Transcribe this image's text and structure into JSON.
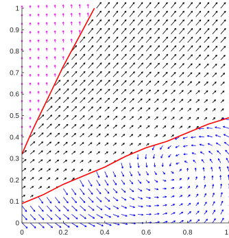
{
  "chart_data": {
    "type": "quiver",
    "title": "",
    "xlabel": "",
    "ylabel": "",
    "xlim": [
      0,
      1
    ],
    "ylim": [
      0,
      1
    ],
    "x_ticks": [
      "0",
      "0.2",
      "0.4",
      "0.6",
      "0.8",
      "1"
    ],
    "y_ticks": [
      "0",
      "0.1",
      "0.2",
      "0.3",
      "0.4",
      "0.5",
      "0.6",
      "0.7",
      "0.8",
      "0.9",
      "1"
    ],
    "grid": false,
    "legend": "none",
    "field": {
      "grid_step": 0.04,
      "description_of_regions": [
        {
          "region": "left of upper separatrix",
          "color": "#ff00ff",
          "flow": "upward toward (0,1)"
        },
        {
          "region": "between separatrices",
          "color": "#000000",
          "flow": "up and to the right toward (1,1)"
        },
        {
          "region": "below lower separatrix",
          "color": "#0000ff",
          "flow": "circulating toward a focus near (0.75,0.2)"
        }
      ]
    },
    "curves": [
      {
        "color": "#ff0000",
        "x": [
          0.0,
          0.05,
          0.1,
          0.15,
          0.2,
          0.25,
          0.3,
          0.35
        ],
        "y": [
          0.32,
          0.43,
          0.53,
          0.63,
          0.73,
          0.82,
          0.91,
          1.0
        ]
      },
      {
        "color": "#ff0000",
        "x": [
          0.0,
          0.1,
          0.2,
          0.3,
          0.4,
          0.5,
          0.6,
          0.7,
          0.8,
          0.9,
          1.0
        ],
        "y": [
          0.09,
          0.13,
          0.18,
          0.22,
          0.26,
          0.31,
          0.35,
          0.38,
          0.42,
          0.46,
          0.49
        ]
      }
    ],
    "colors": {
      "upper_region": "#ff00ff",
      "middle_region": "#000000",
      "lower_region": "#0000ff",
      "separatrix": "#ff0000"
    }
  }
}
